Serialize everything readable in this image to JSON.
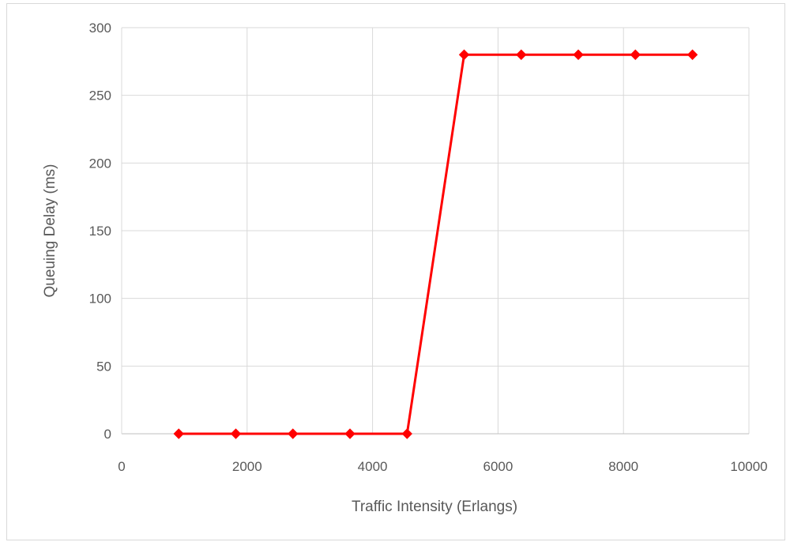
{
  "chart_data": {
    "type": "line",
    "xlabel": "Traffic Intensity (Erlangs)",
    "ylabel": "Queuing Delay (ms)",
    "xlim": [
      0,
      10000
    ],
    "ylim": [
      0,
      300
    ],
    "xticks": [
      0,
      2000,
      4000,
      6000,
      8000,
      10000
    ],
    "yticks": [
      0,
      50,
      100,
      150,
      200,
      250,
      300
    ],
    "xtick_labels": [
      "0",
      "2000",
      "4000",
      "6000",
      "8000",
      "10000"
    ],
    "ytick_labels": [
      "0",
      "50",
      "100",
      "150",
      "200",
      "250",
      "300"
    ],
    "grid": true,
    "legend": "none",
    "series": [
      {
        "color": "#ff0000",
        "marker": "diamond",
        "x": [
          910,
          1820,
          2730,
          3640,
          4550,
          5460,
          6370,
          7280,
          8190,
          9100
        ],
        "y": [
          0,
          0,
          0,
          0,
          0,
          280,
          280,
          280,
          280,
          280
        ]
      }
    ]
  }
}
